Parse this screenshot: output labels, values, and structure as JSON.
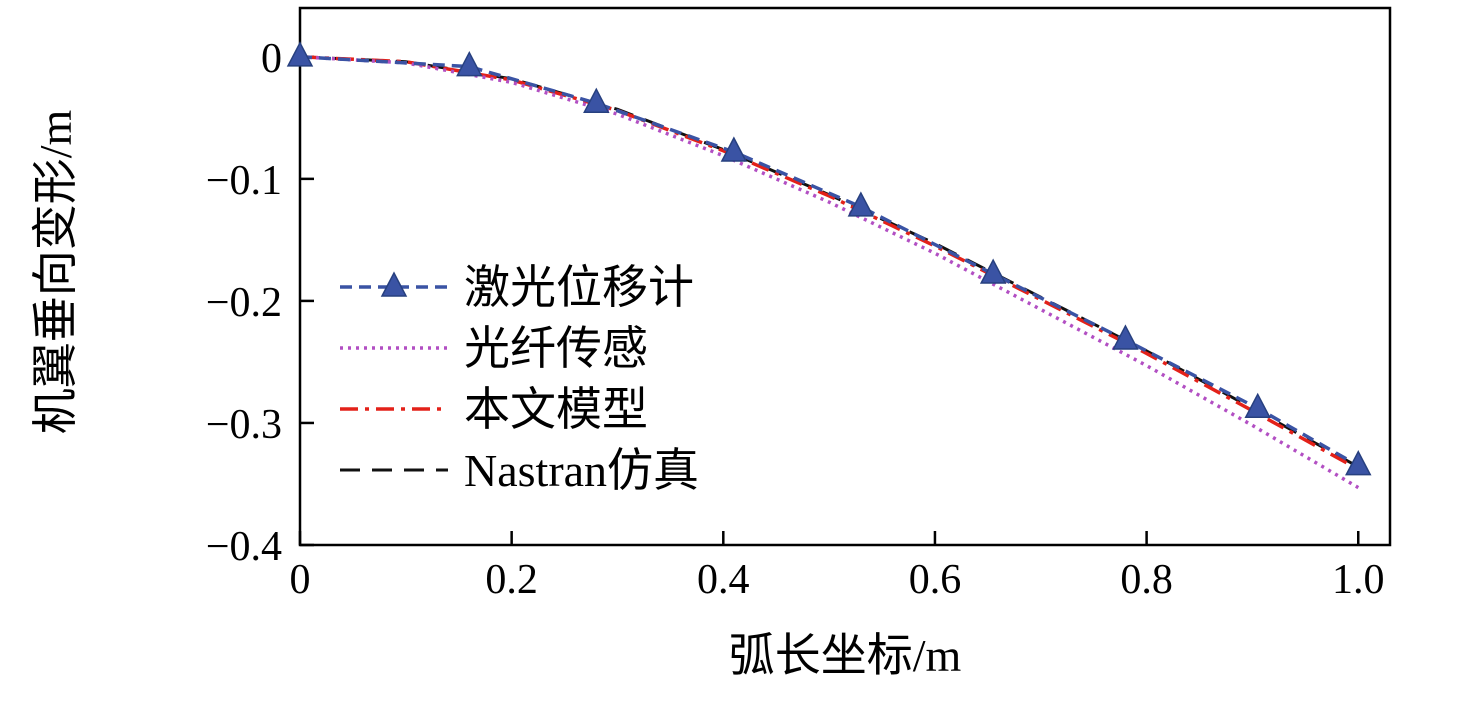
{
  "figure": {
    "background": "#ffffff",
    "axis_color": "#000000"
  },
  "chart_data": {
    "type": "line",
    "title": "",
    "xlabel": "弧长坐标/m",
    "ylabel": "机翼垂向变形/m",
    "xlim": [
      0,
      1.03
    ],
    "ylim": [
      -0.4,
      0.04
    ],
    "xticks": [
      0,
      0.2,
      0.4,
      0.6,
      0.8,
      1.0
    ],
    "xtick_labels": [
      "0",
      "0.2",
      "0.4",
      "0.6",
      "0.8",
      "1.0"
    ],
    "yticks": [
      0,
      -0.1,
      -0.2,
      -0.3,
      -0.4
    ],
    "ytick_labels": [
      "0",
      "−0.1",
      "−0.2",
      "−0.3",
      "−0.4"
    ],
    "grid": false,
    "legend_position": "inside middle-left",
    "series": [
      {
        "id": "laser",
        "name": "激光位移计",
        "color": "#3a53a4",
        "marker": "triangle",
        "marker_edge": "#27407f",
        "line_style": "dashed",
        "dash": [
          12,
          7
        ],
        "width": 3.5,
        "x": [
          0,
          0.16,
          0.28,
          0.41,
          0.53,
          0.655,
          0.78,
          0.905,
          1.0
        ],
        "y": [
          0,
          -0.008,
          -0.038,
          -0.078,
          -0.123,
          -0.178,
          -0.232,
          -0.288,
          -0.335
        ]
      },
      {
        "id": "fiber",
        "name": "光纤传感",
        "color": "#b24fc3",
        "marker": "none",
        "line_style": "dotted",
        "dash": [
          3,
          5
        ],
        "width": 3.5,
        "x": [
          0,
          0.1,
          0.2,
          0.3,
          0.4,
          0.5,
          0.6,
          0.7,
          0.8,
          0.9,
          1.0
        ],
        "y": [
          0,
          -0.005,
          -0.021,
          -0.047,
          -0.081,
          -0.119,
          -0.161,
          -0.207,
          -0.253,
          -0.302,
          -0.353
        ]
      },
      {
        "id": "model",
        "name": "本文模型",
        "color": "#e32119",
        "marker": "none",
        "line_style": "dash-dot",
        "dash": [
          18,
          7,
          4,
          7
        ],
        "width": 3.5,
        "x": [
          0,
          0.1,
          0.2,
          0.3,
          0.4,
          0.5,
          0.6,
          0.7,
          0.8,
          0.9,
          1.0
        ],
        "y": [
          0,
          -0.004,
          -0.019,
          -0.044,
          -0.077,
          -0.114,
          -0.155,
          -0.199,
          -0.243,
          -0.29,
          -0.338
        ]
      },
      {
        "id": "nastran",
        "name": "Nastran仿真",
        "color": "#111111",
        "marker": "none",
        "line_style": "dashed",
        "dash": [
          20,
          12
        ],
        "width": 3,
        "x": [
          0,
          0.1,
          0.2,
          0.3,
          0.4,
          0.5,
          0.6,
          0.7,
          0.8,
          0.9,
          1.0
        ],
        "y": [
          0,
          -0.004,
          -0.018,
          -0.043,
          -0.076,
          -0.113,
          -0.153,
          -0.197,
          -0.241,
          -0.288,
          -0.336
        ]
      }
    ]
  }
}
